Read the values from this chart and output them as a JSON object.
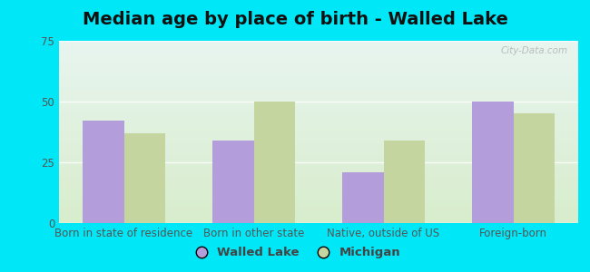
{
  "title": "Median age by place of birth - Walled Lake",
  "categories": [
    "Born in state of residence",
    "Born in other state",
    "Native, outside of US",
    "Foreign-born"
  ],
  "walled_lake": [
    42,
    34,
    21,
    50
  ],
  "michigan": [
    37,
    50,
    34,
    45
  ],
  "walled_lake_color": "#b39ddb",
  "michigan_color": "#c5d5a0",
  "ylim": [
    0,
    75
  ],
  "yticks": [
    0,
    25,
    50,
    75
  ],
  "legend_label_1": "Walled Lake",
  "legend_label_2": "Michigan",
  "bar_width": 0.32,
  "outer_bg": "#00e8f8",
  "bg_top": "#e8f5f0",
  "bg_bottom": "#d8edcc",
  "title_fontsize": 14,
  "tick_fontsize": 8.5,
  "legend_fontsize": 9.5,
  "watermark": "City-Data.com"
}
